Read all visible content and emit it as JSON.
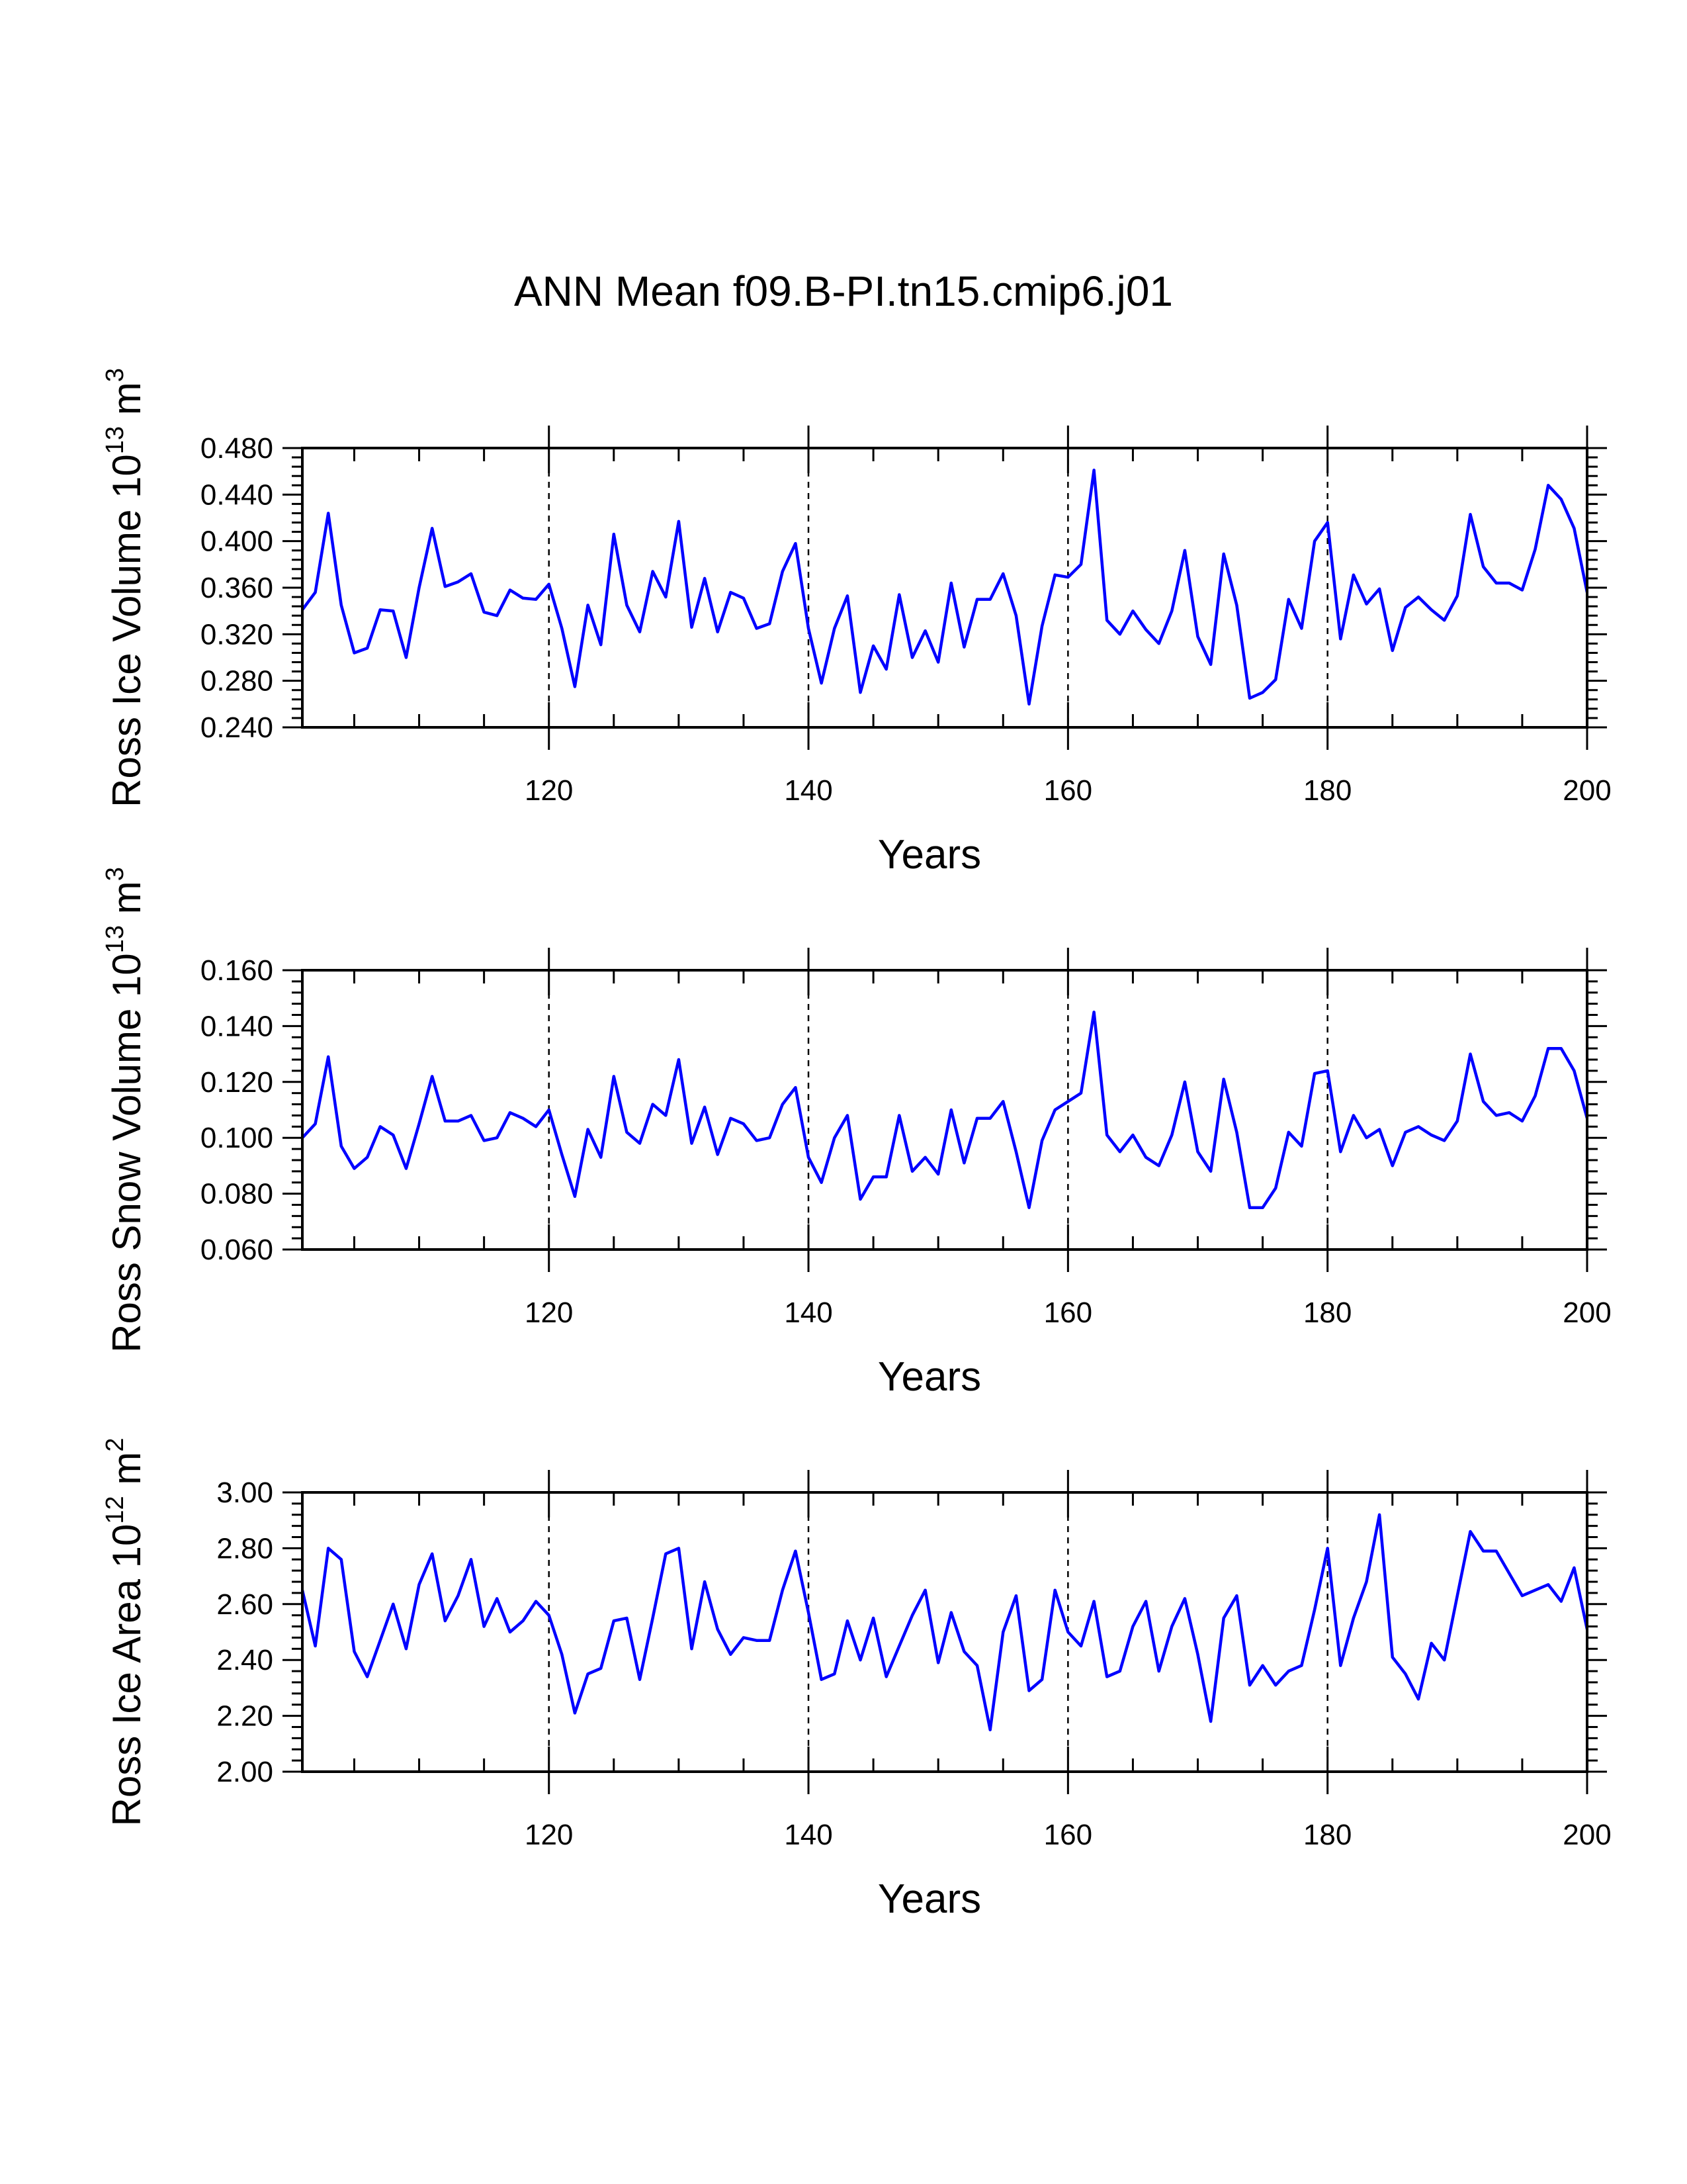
{
  "chart_data": {
    "title": "ANN Mean f09.B-PI.tn15.cmip6.j01",
    "panels": [
      {
        "type": "line",
        "ylabel_prefix": "Ross Ice Volume 10",
        "ylabel_exp": "13",
        "ylabel_unit": " m",
        "ylabel_unit_exp": "3",
        "xlabel": "Years",
        "xlim": [
          101,
          200
        ],
        "ylim": [
          0.24,
          0.48
        ],
        "x_ticks": [
          120,
          140,
          160,
          180,
          200
        ],
        "y_ticks": [
          "0.240",
          "0.280",
          "0.320",
          "0.360",
          "0.400",
          "0.440",
          "0.480"
        ],
        "reference_lines_x": [
          120,
          140,
          160,
          180
        ],
        "color": "#0000ff",
        "x_start": 101,
        "values": [
          0.341,
          0.356,
          0.424,
          0.345,
          0.304,
          0.308,
          0.341,
          0.34,
          0.3,
          0.36,
          0.411,
          0.361,
          0.365,
          0.372,
          0.339,
          0.336,
          0.358,
          0.351,
          0.35,
          0.363,
          0.325,
          0.275,
          0.345,
          0.311,
          0.406,
          0.345,
          0.322,
          0.374,
          0.352,
          0.417,
          0.326,
          0.368,
          0.322,
          0.356,
          0.351,
          0.325,
          0.329,
          0.374,
          0.398,
          0.325,
          0.278,
          0.325,
          0.353,
          0.27,
          0.31,
          0.29,
          0.354,
          0.3,
          0.323,
          0.296,
          0.364,
          0.309,
          0.35,
          0.35,
          0.372,
          0.336,
          0.26,
          0.327,
          0.371,
          0.369,
          0.38,
          0.461,
          0.332,
          0.32,
          0.34,
          0.324,
          0.312,
          0.34,
          0.392,
          0.318,
          0.294,
          0.389,
          0.345,
          0.265,
          0.27,
          0.281,
          0.35,
          0.325,
          0.4,
          0.416,
          0.316,
          0.371,
          0.346,
          0.359,
          0.306,
          0.343,
          0.352,
          0.341,
          0.332,
          0.353,
          0.423,
          0.378,
          0.364,
          0.364,
          0.358,
          0.393,
          0.448,
          0.436,
          0.411,
          0.356
        ]
      },
      {
        "type": "line",
        "ylabel_prefix": "Ross Snow Volume 10",
        "ylabel_exp": "13",
        "ylabel_unit": " m",
        "ylabel_unit_exp": "3",
        "xlabel": "Years",
        "xlim": [
          101,
          200
        ],
        "ylim": [
          0.06,
          0.16
        ],
        "x_ticks": [
          120,
          140,
          160,
          180,
          200
        ],
        "y_ticks": [
          "0.060",
          "0.080",
          "0.100",
          "0.120",
          "0.140",
          "0.160"
        ],
        "reference_lines_x": [
          120,
          140,
          160,
          180
        ],
        "color": "#0000ff",
        "x_start": 101,
        "values": [
          0.1,
          0.105,
          0.129,
          0.097,
          0.089,
          0.093,
          0.104,
          0.101,
          0.089,
          0.105,
          0.122,
          0.106,
          0.106,
          0.108,
          0.099,
          0.1,
          0.109,
          0.107,
          0.104,
          0.11,
          0.094,
          0.079,
          0.103,
          0.093,
          0.122,
          0.102,
          0.098,
          0.112,
          0.108,
          0.128,
          0.098,
          0.111,
          0.094,
          0.107,
          0.105,
          0.099,
          0.1,
          0.112,
          0.118,
          0.093,
          0.084,
          0.1,
          0.108,
          0.078,
          0.086,
          0.086,
          0.108,
          0.088,
          0.093,
          0.087,
          0.11,
          0.091,
          0.107,
          0.107,
          0.113,
          0.095,
          0.075,
          0.099,
          0.11,
          0.113,
          0.116,
          0.145,
          0.101,
          0.095,
          0.101,
          0.093,
          0.09,
          0.101,
          0.12,
          0.095,
          0.088,
          0.121,
          0.102,
          0.075,
          0.075,
          0.082,
          0.102,
          0.097,
          0.123,
          0.124,
          0.095,
          0.108,
          0.1,
          0.103,
          0.09,
          0.102,
          0.104,
          0.101,
          0.099,
          0.106,
          0.13,
          0.113,
          0.108,
          0.109,
          0.106,
          0.115,
          0.132,
          0.132,
          0.124,
          0.107
        ]
      },
      {
        "type": "line",
        "ylabel_prefix": "Ross Ice Area 10",
        "ylabel_exp": "12",
        "ylabel_unit": " m",
        "ylabel_unit_exp": "2",
        "xlabel": "Years",
        "xlim": [
          101,
          200
        ],
        "ylim": [
          2.0,
          3.0
        ],
        "x_ticks": [
          120,
          140,
          160,
          180,
          200
        ],
        "y_ticks": [
          "2.00",
          "2.20",
          "2.40",
          "2.60",
          "2.80",
          "3.00"
        ],
        "reference_lines_x": [
          120,
          140,
          160,
          180
        ],
        "color": "#0000ff",
        "x_start": 101,
        "values": [
          2.65,
          2.45,
          2.8,
          2.76,
          2.43,
          2.34,
          2.47,
          2.6,
          2.44,
          2.67,
          2.78,
          2.54,
          2.63,
          2.76,
          2.52,
          2.62,
          2.5,
          2.54,
          2.61,
          2.56,
          2.42,
          2.21,
          2.35,
          2.37,
          2.54,
          2.55,
          2.33,
          2.55,
          2.78,
          2.8,
          2.44,
          2.68,
          2.51,
          2.42,
          2.48,
          2.47,
          2.47,
          2.65,
          2.79,
          2.57,
          2.33,
          2.35,
          2.54,
          2.4,
          2.55,
          2.34,
          2.45,
          2.56,
          2.65,
          2.39,
          2.57,
          2.43,
          2.38,
          2.15,
          2.5,
          2.63,
          2.29,
          2.33,
          2.65,
          2.5,
          2.45,
          2.61,
          2.34,
          2.36,
          2.52,
          2.61,
          2.36,
          2.52,
          2.62,
          2.42,
          2.18,
          2.55,
          2.63,
          2.31,
          2.38,
          2.31,
          2.36,
          2.38,
          2.58,
          2.8,
          2.38,
          2.55,
          2.68,
          2.92,
          2.41,
          2.35,
          2.26,
          2.46,
          2.4,
          2.63,
          2.86,
          2.79,
          2.79,
          2.71,
          2.63,
          2.65,
          2.67,
          2.61,
          2.73,
          2.51
        ]
      }
    ]
  }
}
